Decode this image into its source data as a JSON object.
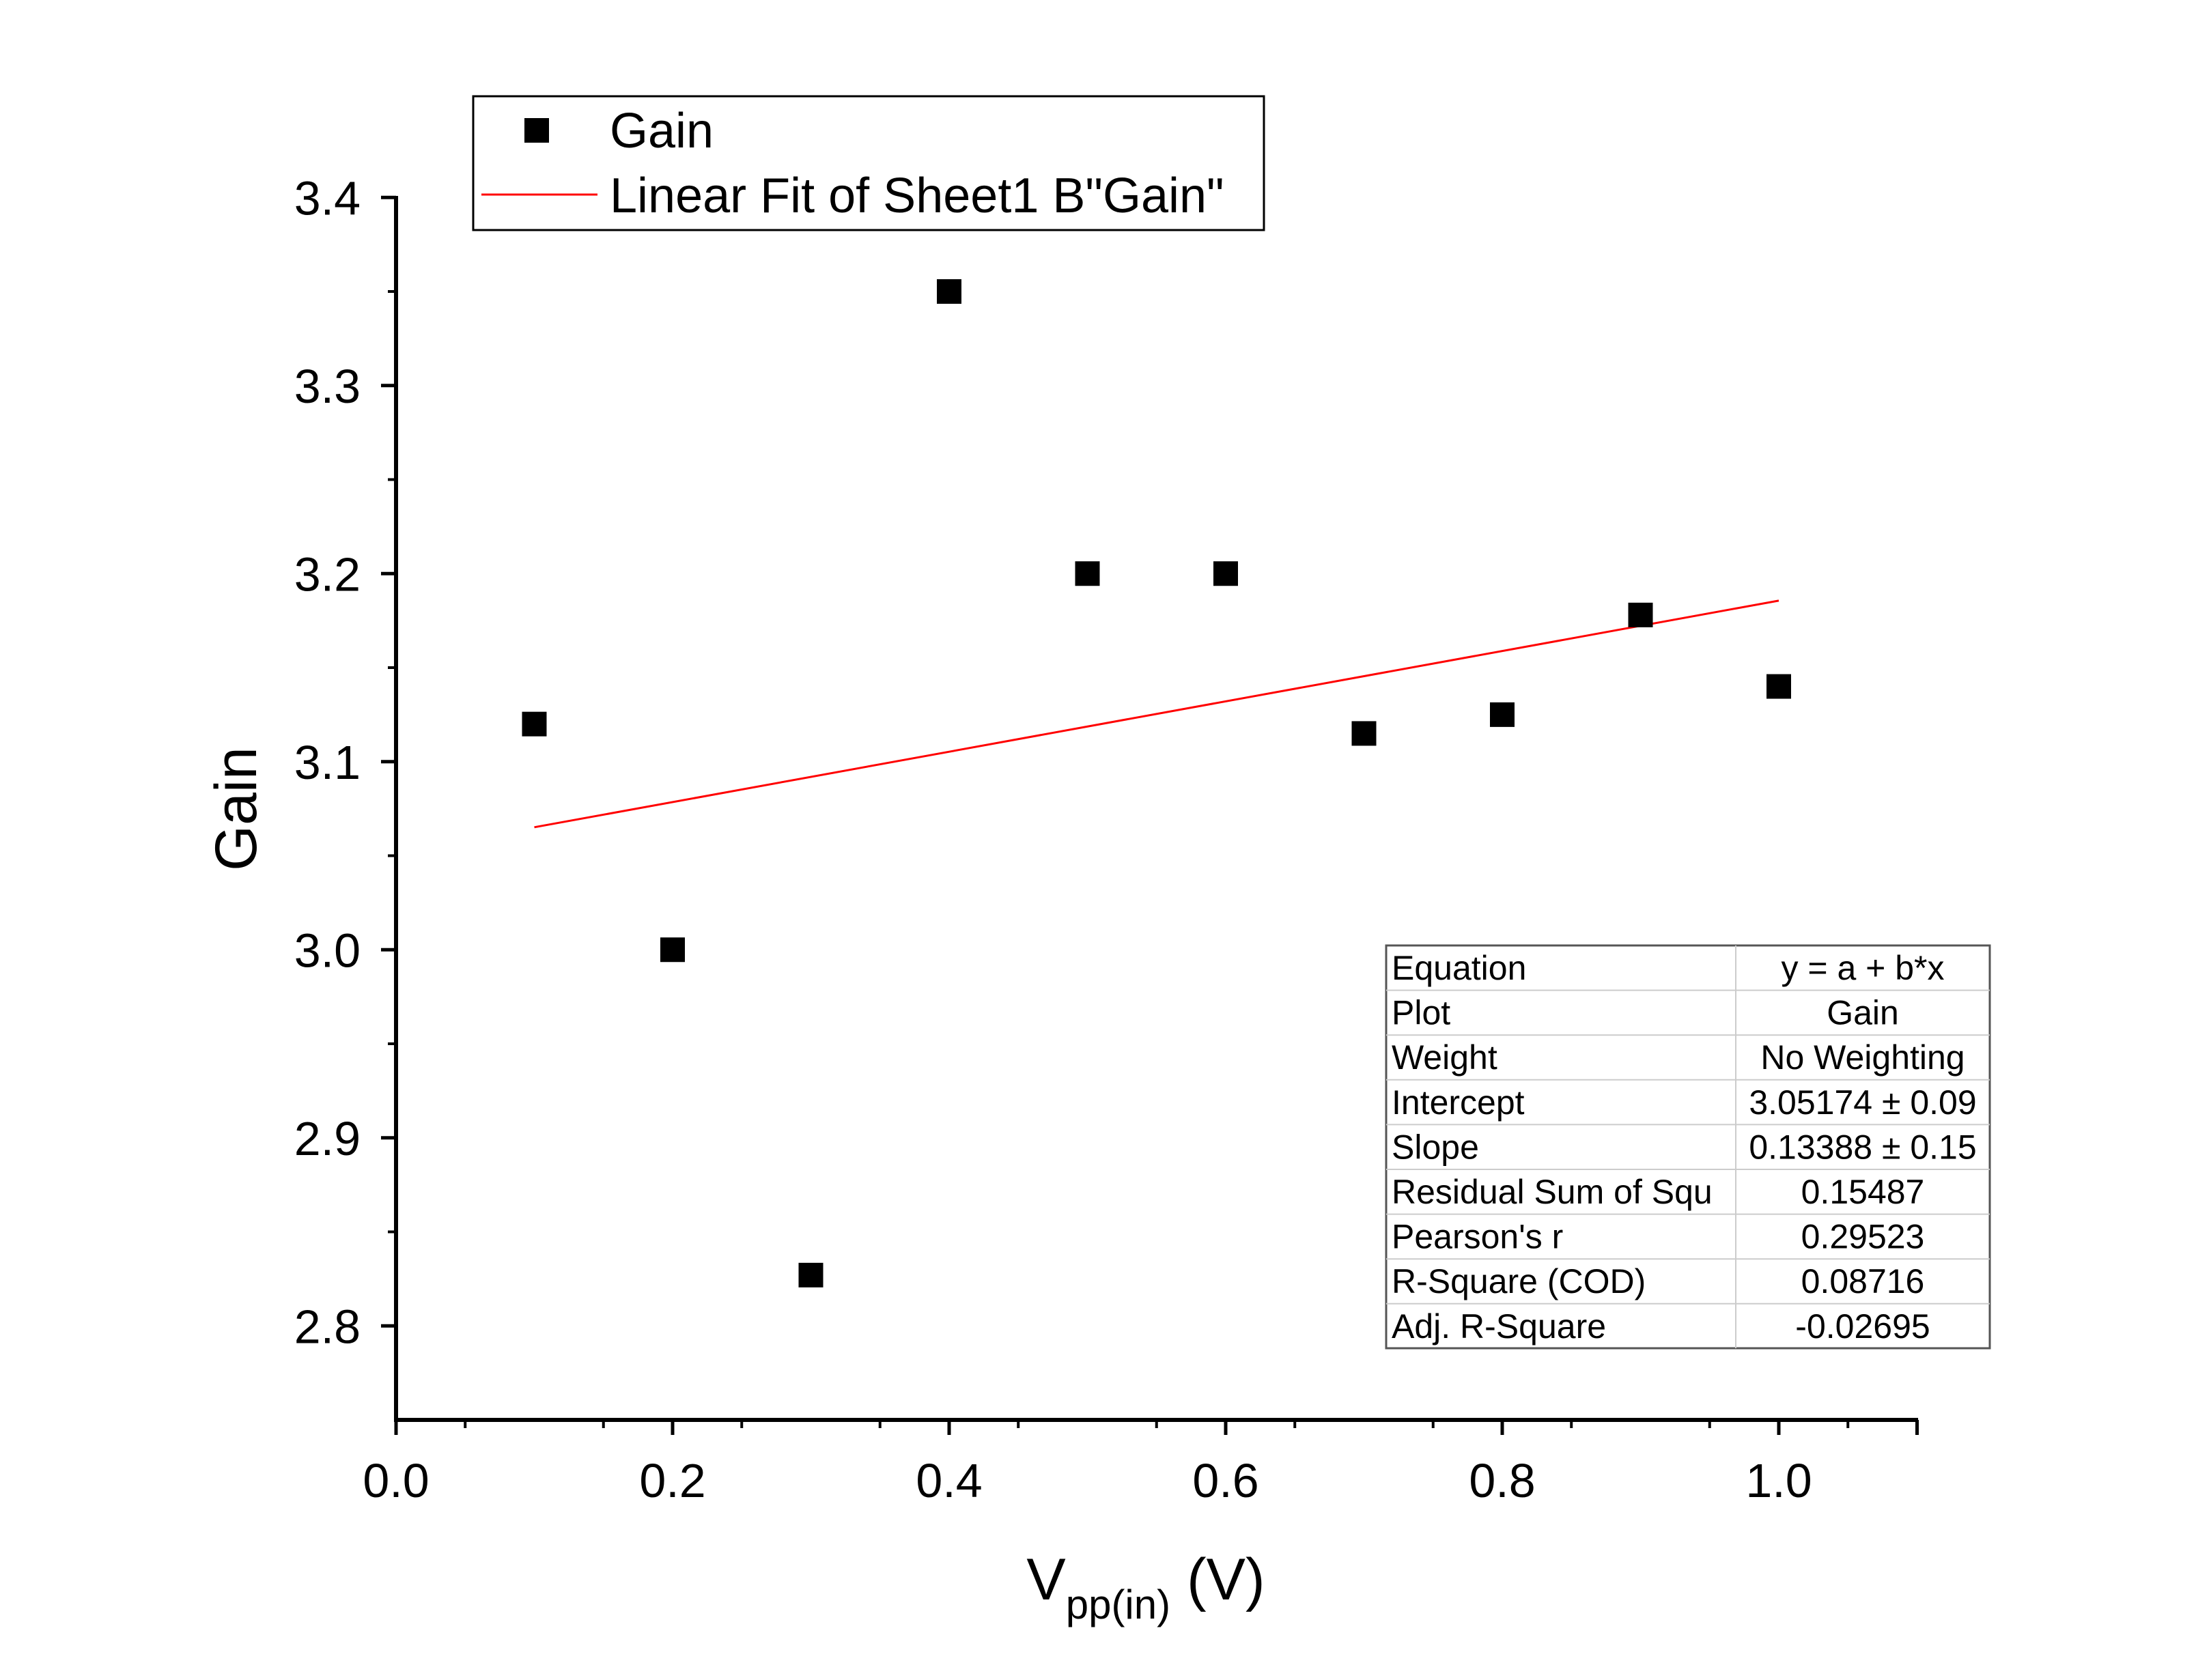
{
  "chart_data": {
    "type": "scatter",
    "xlabel_main": "V",
    "xlabel_sub": "pp(in)",
    "xlabel_unit": " (V)",
    "ylabel": "Gain",
    "xlim": [
      0.0,
      1.1
    ],
    "ylim": [
      2.75,
      3.4
    ],
    "x_ticks": [
      "0.0",
      "0.2",
      "0.4",
      "0.6",
      "0.8",
      "1.0"
    ],
    "y_ticks": [
      "2.8",
      "2.9",
      "3.0",
      "3.1",
      "3.2",
      "3.3",
      "3.4"
    ],
    "series": [
      {
        "name": "Gain",
        "marker": "square",
        "color": "#000000",
        "x": [
          0.1,
          0.2,
          0.3,
          0.4,
          0.5,
          0.6,
          0.7,
          0.8,
          0.9,
          1.0
        ],
        "y": [
          3.12,
          3.0,
          2.827,
          3.35,
          3.2,
          3.2,
          3.115,
          3.125,
          3.178,
          3.14
        ]
      }
    ],
    "fit": {
      "name": "Linear Fit of Sheet1 B\"Gain\"",
      "color": "#ff0000",
      "intercept": 3.05174,
      "slope": 0.13388,
      "x_range": [
        0.1,
        1.0
      ]
    },
    "legend": {
      "placement": "top-left",
      "entries": [
        "Gain",
        "Linear Fit of Sheet1 B\"Gain\""
      ]
    },
    "stats_table": [
      [
        "Equation",
        "y = a + b*x"
      ],
      [
        "Plot",
        "Gain"
      ],
      [
        "Weight",
        "No Weighting"
      ],
      [
        "Intercept",
        "3.05174 ± 0.09"
      ],
      [
        "Slope",
        "0.13388 ± 0.15"
      ],
      [
        "Residual Sum of Squ",
        "0.15487"
      ],
      [
        "Pearson's r",
        "0.29523"
      ],
      [
        "R-Square (COD)",
        "0.08716"
      ],
      [
        "Adj. R-Square",
        "-0.02695"
      ]
    ]
  }
}
